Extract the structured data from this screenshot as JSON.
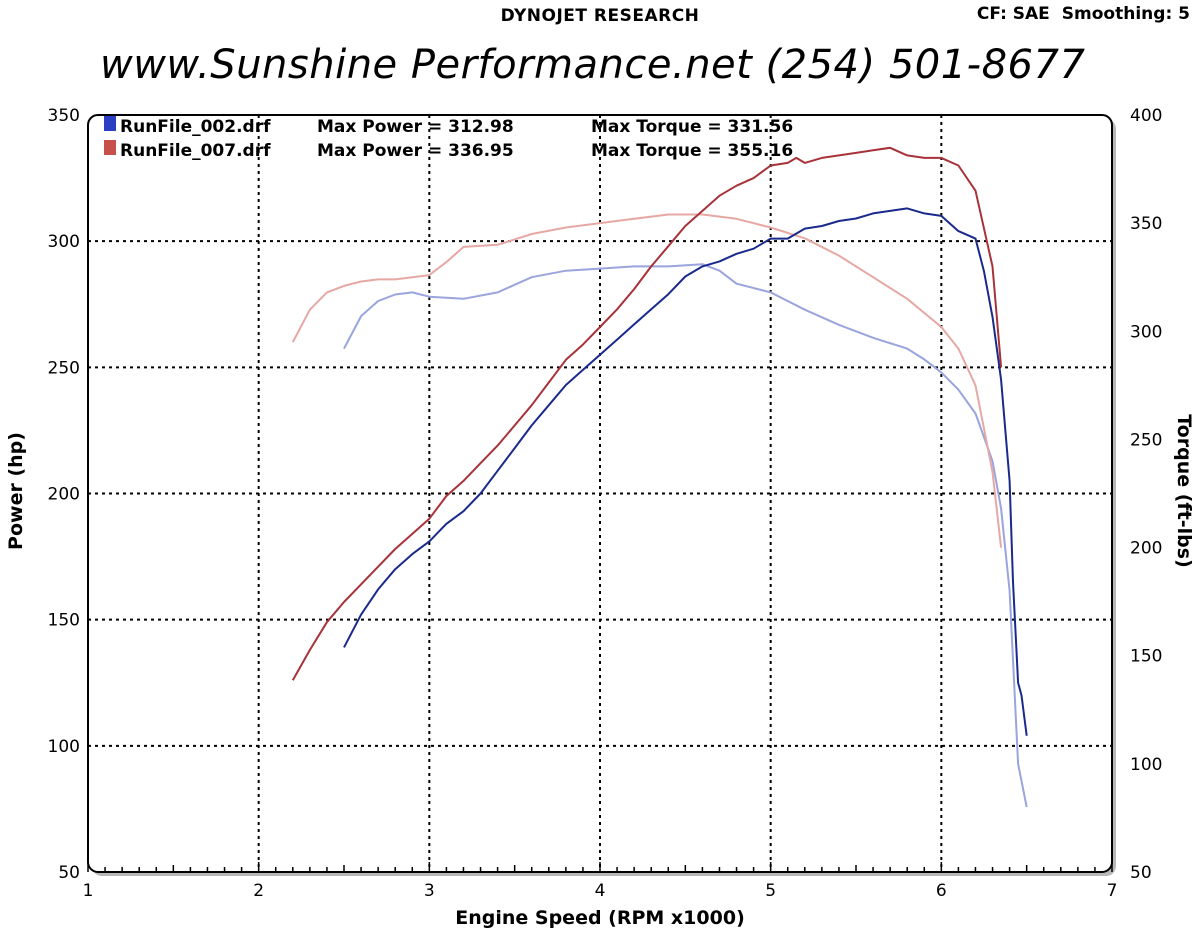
{
  "header": {
    "title": "DYNOJET RESEARCH",
    "cf": "CF: SAE",
    "smoothing": "Smoothing: 5",
    "banner": "www.Sunshine Performance.net  (254) 501-8677"
  },
  "colors": {
    "run1_power": "#1a2a8c",
    "run1_torque": "#9aa4dd",
    "run2_power": "#a8323a",
    "run2_torque": "#e6a8a4",
    "legend_run1": "#2b3fc2",
    "legend_run2": "#c8504a"
  },
  "chart_data": {
    "type": "line",
    "xlabel": "Engine Speed (RPM x1000)",
    "ylabel": "Power (hp)",
    "y2label": "Torque (ft-lbs)",
    "xlim": [
      1,
      7
    ],
    "ylim": [
      50,
      350
    ],
    "y2lim": [
      50,
      400
    ],
    "xticks": [
      1,
      2,
      3,
      4,
      5,
      6,
      7
    ],
    "yticks": [
      50,
      100,
      150,
      200,
      250,
      300,
      350
    ],
    "y2ticks": [
      50,
      100,
      150,
      200,
      250,
      300,
      350,
      400
    ],
    "grid": true,
    "legend_position": "top-left",
    "legend": [
      {
        "file": "RunFile_002.drf",
        "power_text": "Max Power = 312.98",
        "torque_text": "Max Torque = 331.56"
      },
      {
        "file": "RunFile_007.drf",
        "power_text": "Max Power = 336.95",
        "torque_text": "Max Torque = 355.16"
      }
    ],
    "series": [
      {
        "run": "RunFile_002.drf",
        "measure": "power",
        "axis": "left",
        "x": [
          2.5,
          2.6,
          2.7,
          2.8,
          2.9,
          3.0,
          3.1,
          3.2,
          3.3,
          3.4,
          3.5,
          3.6,
          3.7,
          3.8,
          3.9,
          4.0,
          4.1,
          4.2,
          4.3,
          4.4,
          4.5,
          4.6,
          4.7,
          4.8,
          4.9,
          5.0,
          5.1,
          5.2,
          5.3,
          5.4,
          5.5,
          5.6,
          5.7,
          5.8,
          5.9,
          6.0,
          6.1,
          6.2,
          6.25,
          6.3,
          6.35,
          6.4,
          6.42,
          6.45,
          6.47,
          6.5
        ],
        "y": [
          139,
          152,
          162,
          170,
          176,
          181,
          188,
          193,
          200,
          209,
          218,
          227,
          235,
          243,
          249,
          255,
          261,
          267,
          273,
          279,
          286,
          290,
          292,
          295,
          297,
          301,
          301,
          305,
          306,
          308,
          309,
          311,
          312,
          313,
          311,
          310,
          304,
          301,
          288,
          270,
          245,
          205,
          165,
          125,
          120,
          104
        ]
      },
      {
        "run": "RunFile_002.drf",
        "measure": "torque",
        "axis": "right",
        "x": [
          2.5,
          2.6,
          2.7,
          2.8,
          2.9,
          3.0,
          3.2,
          3.4,
          3.6,
          3.8,
          4.0,
          4.2,
          4.4,
          4.6,
          4.7,
          4.8,
          5.0,
          5.2,
          5.4,
          5.6,
          5.8,
          5.9,
          6.0,
          6.1,
          6.2,
          6.3,
          6.35,
          6.4,
          6.45,
          6.5
        ],
        "y": [
          292,
          307,
          314,
          317,
          318,
          316,
          315,
          318,
          325,
          328,
          329,
          330,
          330,
          331,
          328,
          322,
          318,
          310,
          303,
          297,
          292,
          287,
          281,
          273,
          262,
          240,
          218,
          180,
          100,
          80
        ]
      },
      {
        "run": "RunFile_007.drf",
        "measure": "power",
        "axis": "left",
        "x": [
          2.2,
          2.3,
          2.4,
          2.5,
          2.6,
          2.7,
          2.8,
          2.9,
          3.0,
          3.1,
          3.2,
          3.3,
          3.4,
          3.5,
          3.6,
          3.7,
          3.8,
          3.9,
          4.0,
          4.1,
          4.2,
          4.3,
          4.4,
          4.5,
          4.6,
          4.7,
          4.8,
          4.9,
          5.0,
          5.1,
          5.15,
          5.2,
          5.3,
          5.4,
          5.5,
          5.6,
          5.7,
          5.8,
          5.9,
          6.0,
          6.1,
          6.2,
          6.3,
          6.35
        ],
        "y": [
          126,
          138,
          149,
          157,
          164,
          171,
          178,
          184,
          190,
          199,
          205,
          212,
          219,
          227,
          235,
          244,
          253,
          259,
          266,
          273,
          281,
          290,
          298,
          306,
          312,
          318,
          322,
          325,
          330,
          331,
          333,
          331,
          333,
          334,
          335,
          336,
          337,
          334,
          333,
          333,
          330,
          320,
          290,
          250
        ]
      },
      {
        "run": "RunFile_007.drf",
        "measure": "torque",
        "axis": "right",
        "x": [
          2.2,
          2.3,
          2.4,
          2.5,
          2.6,
          2.7,
          2.8,
          2.9,
          3.0,
          3.1,
          3.2,
          3.4,
          3.6,
          3.8,
          4.0,
          4.2,
          4.4,
          4.6,
          4.8,
          5.0,
          5.2,
          5.4,
          5.6,
          5.8,
          6.0,
          6.1,
          6.2,
          6.3,
          6.35
        ],
        "y": [
          295,
          310,
          318,
          321,
          323,
          324,
          324,
          325,
          326,
          332,
          339,
          340,
          345,
          348,
          350,
          352,
          354,
          354,
          352,
          348,
          343,
          335,
          325,
          315,
          302,
          292,
          275,
          235,
          200
        ]
      }
    ]
  }
}
